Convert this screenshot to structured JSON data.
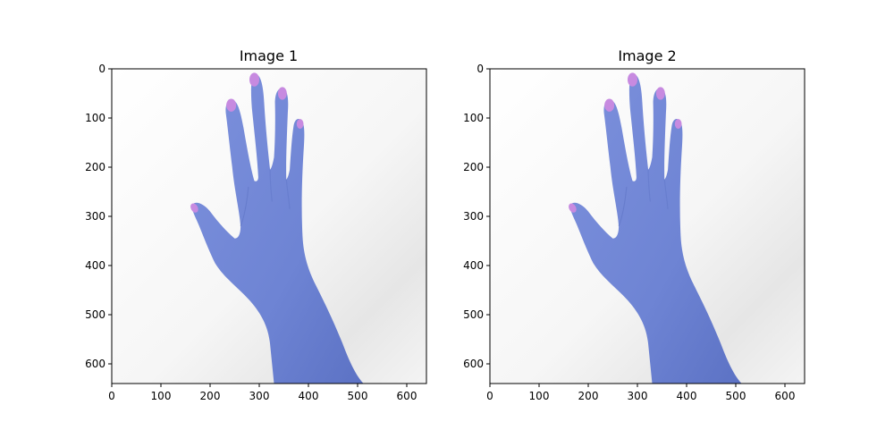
{
  "figure": {
    "panels": [
      {
        "title": "Image 1",
        "image_size": [
          640,
          640
        ],
        "x_ticks": [
          "0",
          "100",
          "200",
          "300",
          "400",
          "500",
          "600"
        ],
        "y_ticks": [
          "0",
          "100",
          "200",
          "300",
          "400",
          "500",
          "600"
        ],
        "subject": "hand-icon"
      },
      {
        "title": "Image 2",
        "image_size": [
          640,
          640
        ],
        "x_ticks": [
          "0",
          "100",
          "200",
          "300",
          "400",
          "500",
          "600"
        ],
        "y_ticks": [
          "0",
          "100",
          "200",
          "300",
          "400",
          "500",
          "600"
        ],
        "subject": "hand-icon"
      }
    ],
    "colors": {
      "skin": "#6f86d6",
      "skin_shadow": "#5a70c2",
      "nail": "#c78ae0",
      "background": "#f2f2f2"
    }
  }
}
